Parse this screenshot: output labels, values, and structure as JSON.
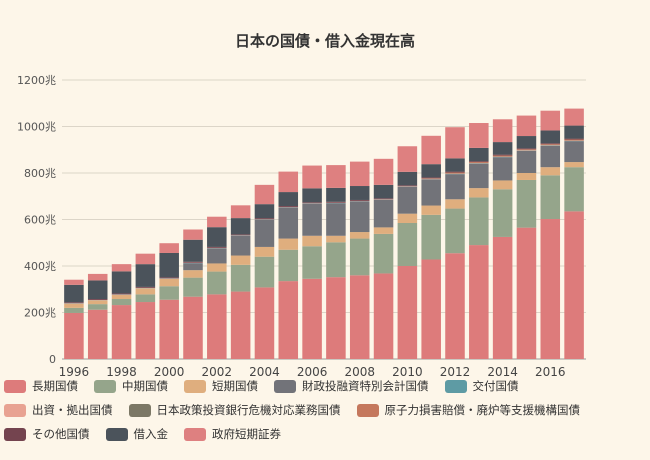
{
  "chart_data": {
    "type": "bar",
    "stacked": true,
    "title": "日本の国債・借入金現在高",
    "y_unit": "兆",
    "ylim": [
      0,
      1200
    ],
    "yticks": [
      0,
      200,
      400,
      600,
      800,
      1000,
      1200
    ],
    "y_tick_labels": [
      "0",
      "200兆",
      "400兆",
      "600兆",
      "800兆",
      "1000兆",
      "1200兆"
    ],
    "grid": true,
    "legend_position": "bottom",
    "categories": [
      "1996",
      "1997",
      "1998",
      "1999",
      "2000",
      "2001",
      "2002",
      "2003",
      "2004",
      "2005",
      "2006",
      "2007",
      "2008",
      "2009",
      "2010",
      "2011",
      "2012",
      "2013",
      "2014",
      "2015",
      "2016",
      "2017"
    ],
    "x_tick_labels": [
      "1996",
      "1998",
      "2000",
      "2002",
      "2004",
      "2006",
      "2008",
      "2010",
      "2012",
      "2014",
      "2016"
    ],
    "series": [
      {
        "name": "長期国債",
        "color": "#dd7b7b",
        "values": [
          198,
          212,
          232,
          245,
          255,
          268,
          278,
          290,
          308,
          335,
          345,
          352,
          360,
          368,
          400,
          428,
          455,
          490,
          525,
          565,
          602,
          635
        ]
      },
      {
        "name": "中期国債",
        "color": "#95a58b",
        "values": [
          22,
          24,
          26,
          33,
          58,
          82,
          98,
          115,
          132,
          135,
          140,
          150,
          158,
          170,
          185,
          192,
          192,
          205,
          205,
          205,
          188,
          190
        ]
      },
      {
        "name": "短期国債",
        "color": "#dfae7e",
        "values": [
          18,
          16,
          18,
          26,
          32,
          32,
          35,
          40,
          42,
          48,
          45,
          28,
          28,
          28,
          40,
          40,
          40,
          40,
          38,
          30,
          35,
          22
        ]
      },
      {
        "name": "財政投融資特別会計国債",
        "color": "#727379",
        "values": [
          0,
          0,
          0,
          0,
          0,
          30,
          65,
          85,
          118,
          134,
          138,
          140,
          132,
          118,
          115,
          112,
          108,
          105,
          100,
          95,
          92,
          90
        ]
      },
      {
        "name": "交付国債",
        "color": "#5e9ba4",
        "values": [
          1,
          1,
          1,
          1,
          1,
          1,
          1,
          1,
          1,
          1,
          1,
          1,
          1,
          1,
          1,
          1,
          1,
          1,
          1,
          1,
          1,
          1
        ]
      },
      {
        "name": "出資・拠出国債",
        "color": "#e8a292",
        "values": [
          1,
          1,
          1,
          1,
          1,
          1,
          1,
          1,
          1,
          1,
          1,
          1,
          1,
          1,
          1,
          1,
          1,
          1,
          1,
          1,
          1,
          1
        ]
      },
      {
        "name": "日本政策投資銀行危機対応業務国債",
        "color": "#7c7866",
        "values": [
          0,
          0,
          0,
          0,
          0,
          0,
          0,
          0,
          0,
          0,
          0,
          0,
          0,
          1,
          1,
          1,
          1,
          1,
          1,
          1,
          1,
          1
        ]
      },
      {
        "name": "原子力損害賠償・廃炉等支援機構国債",
        "color": "#c5785d",
        "values": [
          0,
          0,
          0,
          0,
          0,
          0,
          0,
          0,
          0,
          0,
          0,
          0,
          0,
          0,
          0,
          2,
          4,
          4,
          4,
          4,
          4,
          4
        ]
      },
      {
        "name": "その他国債",
        "color": "#74444f",
        "values": [
          4,
          4,
          4,
          4,
          4,
          4,
          4,
          4,
          4,
          4,
          4,
          4,
          4,
          4,
          4,
          4,
          4,
          4,
          4,
          4,
          4,
          4
        ]
      },
      {
        "name": "借入金",
        "color": "#4b535b",
        "values": [
          75,
          80,
          95,
          98,
          105,
          95,
          85,
          70,
          60,
          60,
          60,
          60,
          60,
          58,
          58,
          57,
          57,
          57,
          54,
          53,
          55,
          56
        ]
      },
      {
        "name": "政府短期証券",
        "color": "#de8080",
        "values": [
          22,
          28,
          31,
          45,
          42,
          44,
          45,
          55,
          83,
          88,
          98,
          98,
          105,
          112,
          110,
          122,
          134,
          107,
          98,
          88,
          85,
          73
        ]
      }
    ]
  }
}
